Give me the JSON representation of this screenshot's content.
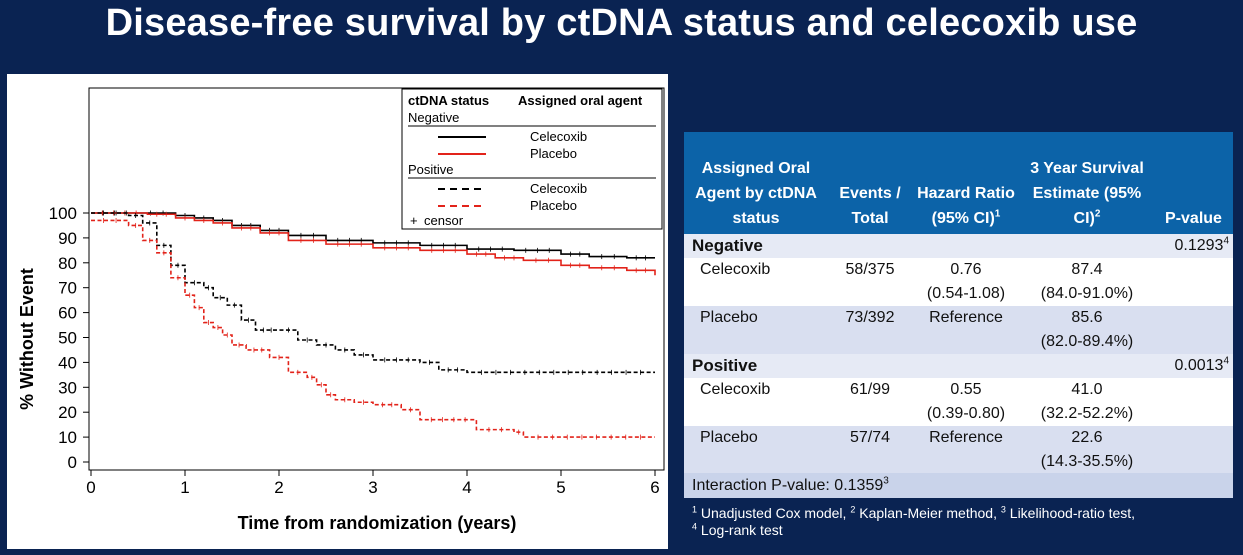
{
  "title": "Disease-free survival by ctDNA status and celecoxib use",
  "colors": {
    "background": "#0a2352",
    "table_header": "#0c63a8",
    "black_series": "#000000",
    "red_series": "#e2231a"
  },
  "chart_data": {
    "type": "line",
    "xlabel": "Time from randomization (years)",
    "ylabel": "% Without Event",
    "xlim": [
      0,
      6
    ],
    "ylim": [
      0,
      100
    ],
    "xticks": [
      "0",
      "1",
      "2",
      "3",
      "4",
      "5",
      "6"
    ],
    "yticks": [
      "0",
      "10",
      "20",
      "30",
      "40",
      "50",
      "60",
      "70",
      "80",
      "90",
      "100"
    ],
    "legend": {
      "col1_header": "ctDNA status",
      "col2_header": "Assigned oral agent",
      "group_negative": "Negative",
      "group_positive": "Positive",
      "censor_label": "censor",
      "position": "top-right"
    },
    "series": [
      {
        "group": "Negative",
        "name": "Celecoxib",
        "color": "#000000",
        "dash": false,
        "points": [
          [
            0,
            100
          ],
          [
            0.5,
            100
          ],
          [
            0.9,
            99
          ],
          [
            1.1,
            98
          ],
          [
            1.3,
            97
          ],
          [
            1.5,
            95
          ],
          [
            1.8,
            93
          ],
          [
            2.1,
            91
          ],
          [
            2.5,
            89
          ],
          [
            3,
            88
          ],
          [
            3.5,
            87
          ],
          [
            4,
            85.5
          ],
          [
            4.5,
            85
          ],
          [
            5,
            83.5
          ],
          [
            5.3,
            82.5
          ],
          [
            5.7,
            82
          ],
          [
            6,
            82
          ]
        ]
      },
      {
        "group": "Negative",
        "name": "Placebo",
        "color": "#e2231a",
        "dash": false,
        "points": [
          [
            0,
            100
          ],
          [
            0.6,
            99.5
          ],
          [
            0.9,
            98
          ],
          [
            1.1,
            97
          ],
          [
            1.3,
            96
          ],
          [
            1.5,
            94
          ],
          [
            1.8,
            92
          ],
          [
            2.1,
            89
          ],
          [
            2.5,
            87.5
          ],
          [
            3,
            86
          ],
          [
            3.5,
            85
          ],
          [
            4,
            83.5
          ],
          [
            4.3,
            82
          ],
          [
            4.6,
            81
          ],
          [
            5,
            79
          ],
          [
            5.3,
            78
          ],
          [
            5.7,
            77
          ],
          [
            6,
            75
          ]
        ]
      },
      {
        "group": "Positive",
        "name": "Celecoxib",
        "color": "#000000",
        "dash": true,
        "points": [
          [
            0,
            100
          ],
          [
            0.4,
            99
          ],
          [
            0.55,
            96
          ],
          [
            0.7,
            87
          ],
          [
            0.85,
            79
          ],
          [
            1,
            72
          ],
          [
            1.2,
            70
          ],
          [
            1.3,
            66
          ],
          [
            1.45,
            63
          ],
          [
            1.6,
            57
          ],
          [
            1.75,
            53
          ],
          [
            2,
            53
          ],
          [
            2.2,
            49
          ],
          [
            2.4,
            47
          ],
          [
            2.6,
            45
          ],
          [
            2.8,
            43
          ],
          [
            3,
            41
          ],
          [
            3.5,
            40
          ],
          [
            3.7,
            37
          ],
          [
            4,
            36
          ],
          [
            6,
            36
          ]
        ]
      },
      {
        "group": "Positive",
        "name": "Placebo",
        "color": "#e2231a",
        "dash": true,
        "points": [
          [
            0,
            97
          ],
          [
            0.4,
            95
          ],
          [
            0.55,
            89
          ],
          [
            0.7,
            84
          ],
          [
            0.85,
            74
          ],
          [
            1,
            67
          ],
          [
            1.1,
            62
          ],
          [
            1.2,
            56
          ],
          [
            1.3,
            54
          ],
          [
            1.4,
            51
          ],
          [
            1.5,
            47
          ],
          [
            1.65,
            45
          ],
          [
            1.9,
            42
          ],
          [
            2.1,
            36
          ],
          [
            2.3,
            34
          ],
          [
            2.4,
            31
          ],
          [
            2.5,
            27
          ],
          [
            2.6,
            25
          ],
          [
            2.8,
            24
          ],
          [
            3,
            23
          ],
          [
            3.3,
            21
          ],
          [
            3.5,
            17
          ],
          [
            4.1,
            13
          ],
          [
            4.5,
            12
          ],
          [
            4.6,
            10
          ],
          [
            6,
            10
          ]
        ]
      }
    ]
  },
  "table": {
    "headers": {
      "agent": "Assigned Oral Agent by ctDNA status",
      "events": "Events / Total",
      "hr": "Hazard Ratio (95% CI)",
      "hr_sup": "1",
      "surv": "3 Year Survival Estimate (95% CI)",
      "surv_sup": "2",
      "p": "P-value"
    },
    "groups": [
      {
        "label": "Negative",
        "p": "0.1293",
        "p_sup": "4",
        "rows": [
          {
            "agent": "Celecoxib",
            "events": "58/375",
            "hr": "0.76",
            "hr_ci": "(0.54-1.08)",
            "surv": "87.4",
            "surv_ci": "(84.0-91.0%)"
          },
          {
            "agent": "Placebo",
            "events": "73/392",
            "hr": "Reference",
            "hr_ci": "",
            "surv": "85.6",
            "surv_ci": "(82.0-89.4%)"
          }
        ]
      },
      {
        "label": "Positive",
        "p": "0.0013",
        "p_sup": "4",
        "rows": [
          {
            "agent": "Celecoxib",
            "events": "61/99",
            "hr": "0.55",
            "hr_ci": "(0.39-0.80)",
            "surv": "41.0",
            "surv_ci": "(32.2-52.2%)"
          },
          {
            "agent": "Placebo",
            "events": "57/74",
            "hr": "Reference",
            "hr_ci": "",
            "surv": "22.6",
            "surv_ci": "(14.3-35.5%)"
          }
        ]
      }
    ],
    "interaction": "Interaction P-value: 0.1359",
    "interaction_sup": "3"
  },
  "footnotes": [
    {
      "sup": "1",
      "text": " Unadjusted Cox model, "
    },
    {
      "sup": "2",
      "text": " Kaplan-Meier method, "
    },
    {
      "sup": "3",
      "text": " Likelihood-ratio test,"
    },
    {
      "sup": "4",
      "text": " Log-rank test"
    }
  ]
}
